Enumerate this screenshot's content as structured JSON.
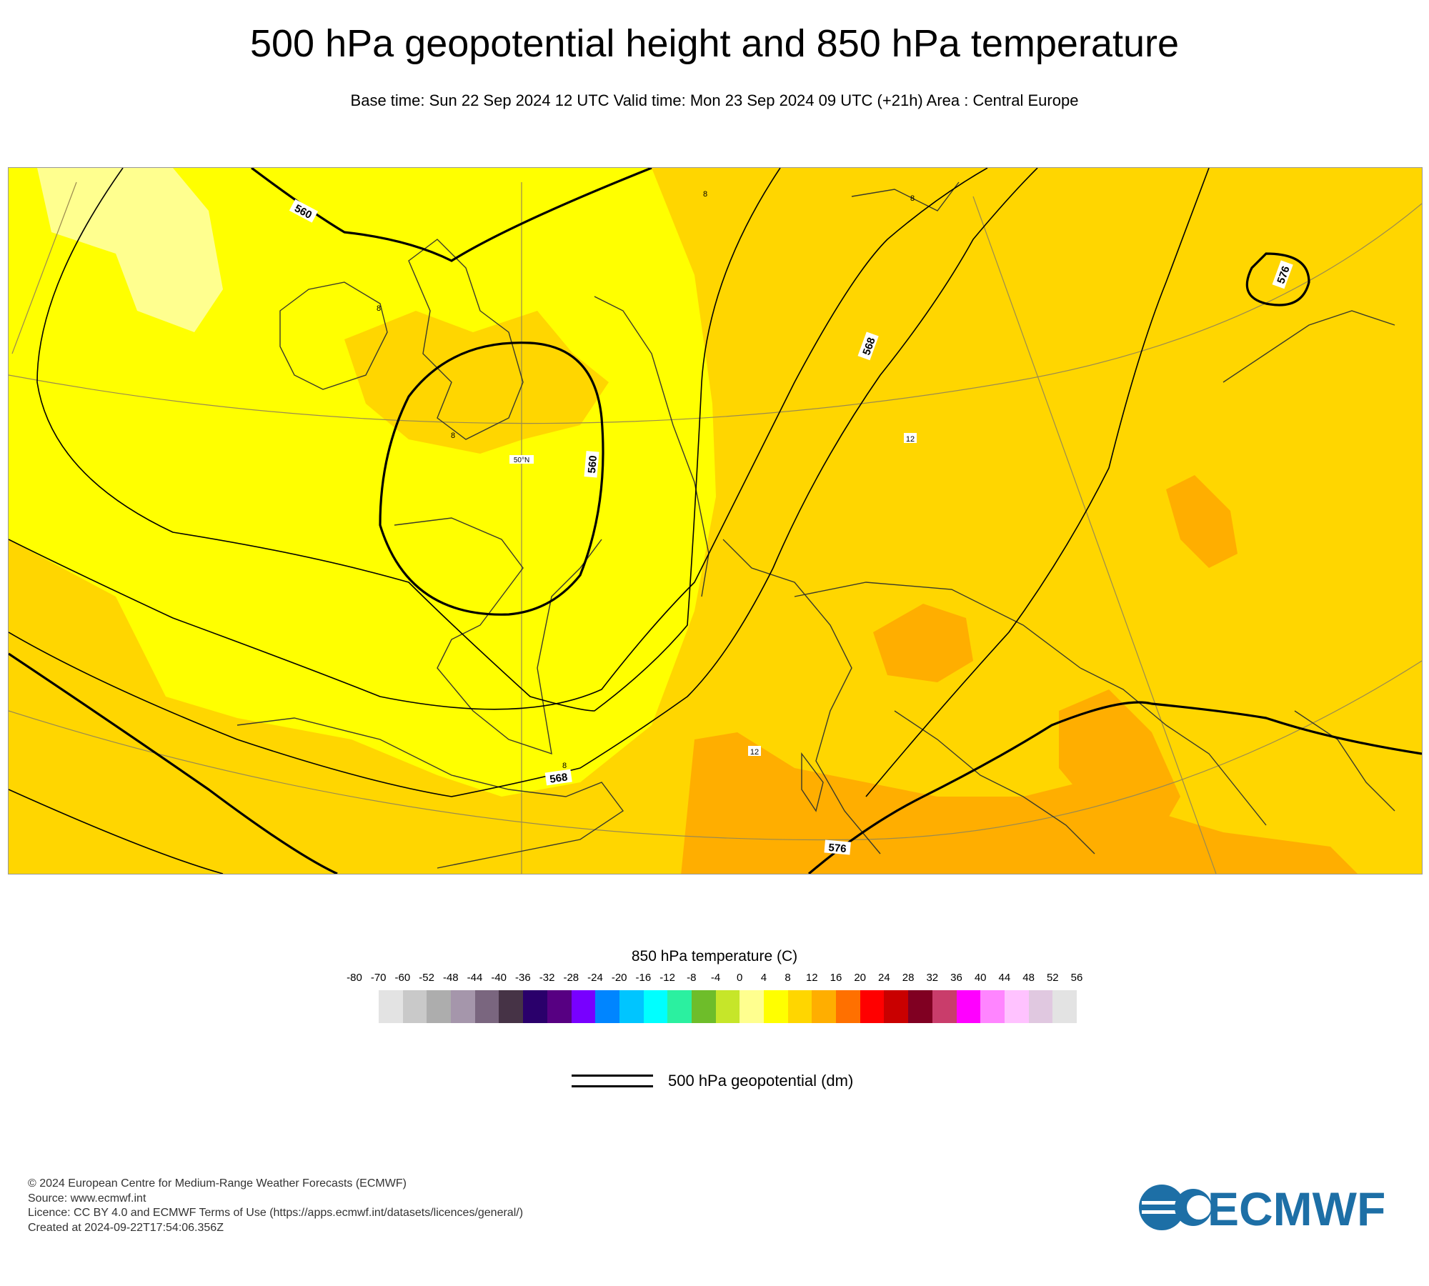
{
  "header": {
    "title": "500 hPa geopotential height and 850 hPa temperature",
    "subtitle": "Base time: Sun 22 Sep 2024 12 UTC Valid time: Mon 23 Sep 2024 09 UTC (+21h) Area : Central Europe"
  },
  "map": {
    "background_color": "#ffd600",
    "contour_labels": [
      "560",
      "560",
      "568",
      "568",
      "576",
      "576"
    ],
    "temperature_labels": [
      "8",
      "8",
      "8",
      "8",
      "8",
      "12",
      "12"
    ],
    "lat_label": "50°N"
  },
  "colorbar": {
    "title": "850 hPa temperature (C)",
    "ticks": [
      "-80",
      "-70",
      "-60",
      "-52",
      "-48",
      "-44",
      "-40",
      "-36",
      "-32",
      "-28",
      "-24",
      "-20",
      "-16",
      "-12",
      "-8",
      "-4",
      "0",
      "4",
      "8",
      "12",
      "16",
      "20",
      "24",
      "28",
      "32",
      "36",
      "40",
      "44",
      "48",
      "52",
      "56"
    ],
    "colors": [
      "#e3e3e3",
      "#c9c9c9",
      "#adadad",
      "#a596ab",
      "#7a667f",
      "#463346",
      "#2a006b",
      "#570082",
      "#7800ff",
      "#0085ff",
      "#00c5ff",
      "#00ffff",
      "#2bf0a0",
      "#6ebd2a",
      "#c6e629",
      "#ffff8f",
      "#ffff00",
      "#ffd600",
      "#ffae00",
      "#ff7000",
      "#ff0000",
      "#c90000",
      "#800022",
      "#c93d6b",
      "#ff00ff",
      "#ff85ff",
      "#ffc2ff",
      "#e0c8e0",
      "#e3e3e3"
    ]
  },
  "legend": {
    "label": "500 hPa geopotential (dm)"
  },
  "footer": {
    "lines": [
      "© 2024 European Centre for Medium-Range Weather Forecasts (ECMWF)",
      "Source: www.ecmwf.int",
      "Licence: CC BY 4.0 and ECMWF Terms of Use (https://apps.ecmwf.int/datasets/licences/general/)",
      "Created at 2024-09-22T17:54:06.356Z"
    ],
    "logo_text": "ECMWF",
    "logo_color": "#1d6fa6"
  }
}
